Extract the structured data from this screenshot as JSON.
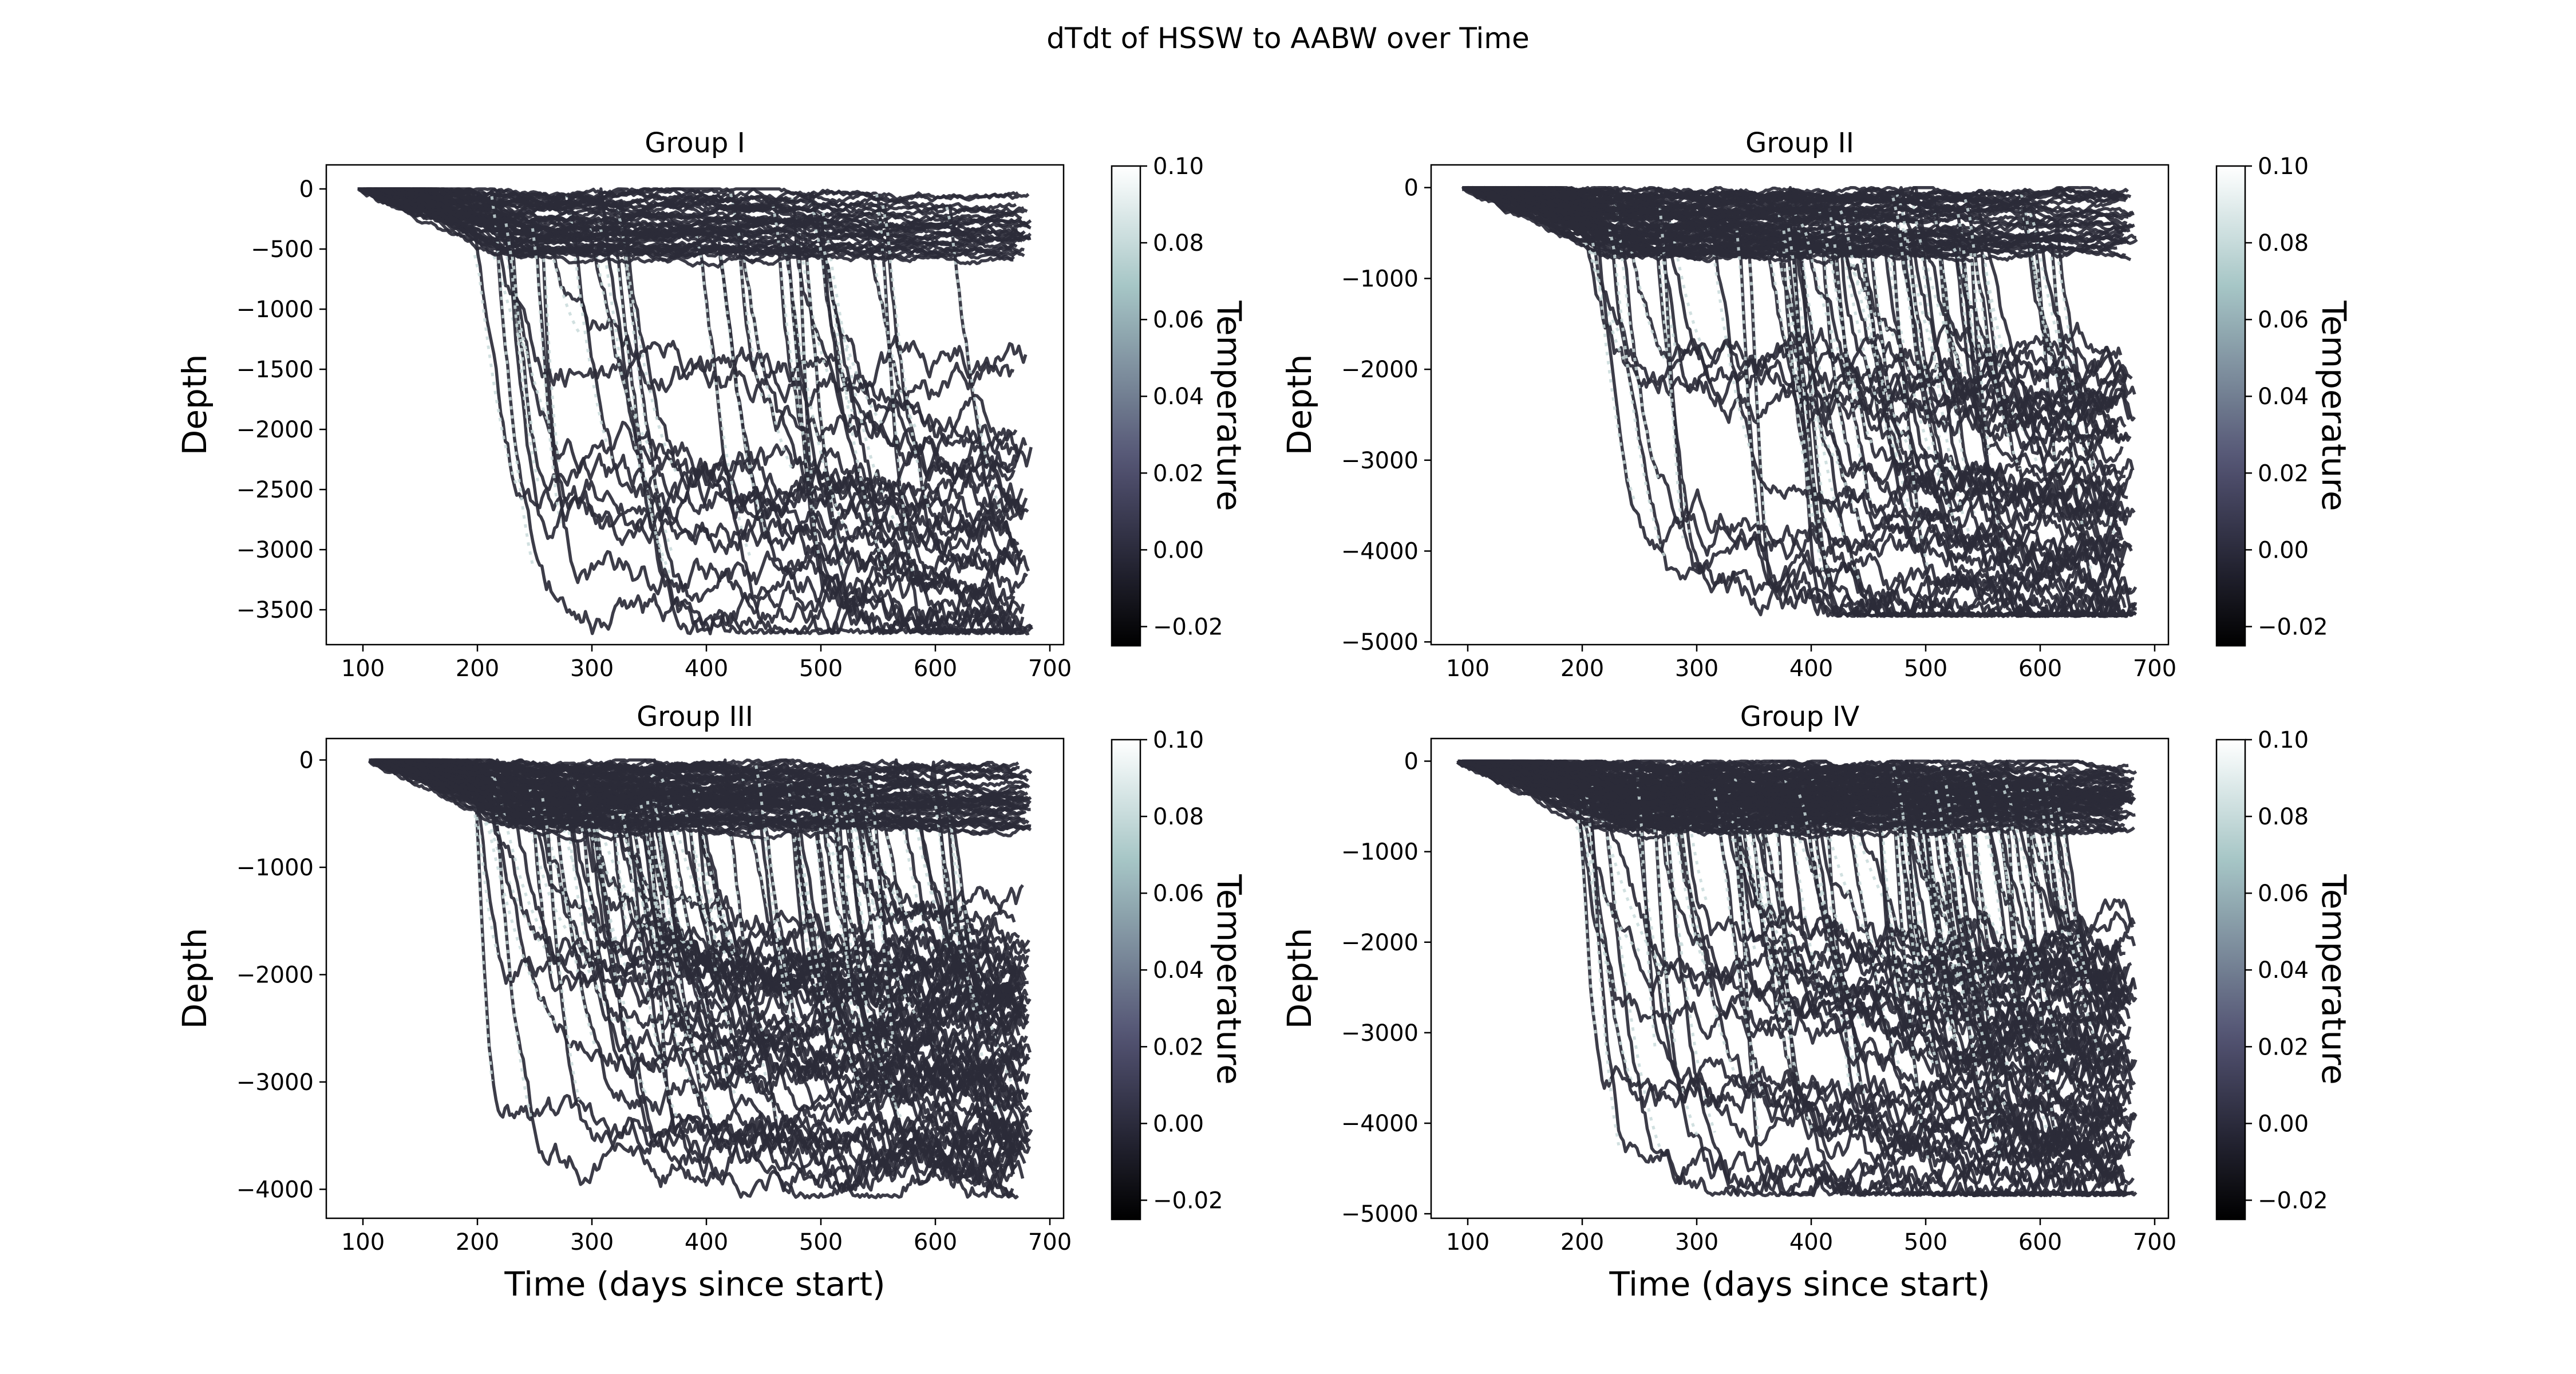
{
  "figure": {
    "title": "dTdt of HSSW to AABW over Time"
  },
  "chart_data": [
    {
      "type": "line",
      "title": "Group I",
      "xlabel": "",
      "ylabel": "Depth",
      "xlim": [
        68,
        712
      ],
      "ylim": [
        -3790,
        200
      ],
      "xticks": [
        100,
        200,
        300,
        400,
        500,
        600,
        700
      ],
      "xtick_labels": [
        "100",
        "200",
        "300",
        "400",
        "500",
        "600",
        "700"
      ],
      "yticks": [
        0,
        -500,
        -1000,
        -1500,
        -2000,
        -2500,
        -3000,
        -3500
      ],
      "ytick_labels": [
        "0",
        "−500",
        "−1000",
        "−1500",
        "−2000",
        "−2500",
        "−3000",
        "−3500"
      ],
      "x_range": [
        95,
        685
      ],
      "trajectory_count": 60,
      "deep_min_depth": -3700,
      "line_color": "#2b2b38",
      "colorbar": {
        "label": "Temperature",
        "range": [
          -0.025,
          0.1
        ],
        "ticks": [
          0.1,
          0.08,
          0.06,
          0.04,
          0.02,
          0.0,
          -0.02
        ],
        "tick_labels": [
          "0.10",
          "0.08",
          "0.06",
          "0.04",
          "0.02",
          "0.00",
          "−0.02"
        ],
        "colormap": "bone"
      }
    },
    {
      "type": "line",
      "title": "Group II",
      "xlabel": "",
      "ylabel": "Depth",
      "xlim": [
        68,
        712
      ],
      "ylim": [
        -5030,
        250
      ],
      "xticks": [
        100,
        200,
        300,
        400,
        500,
        600,
        700
      ],
      "xtick_labels": [
        "100",
        "200",
        "300",
        "400",
        "500",
        "600",
        "700"
      ],
      "yticks": [
        0,
        -1000,
        -2000,
        -3000,
        -4000,
        -5000
      ],
      "ytick_labels": [
        "0",
        "−1000",
        "−2000",
        "−3000",
        "−4000",
        "−5000"
      ],
      "x_range": [
        95,
        685
      ],
      "trajectory_count": 85,
      "deep_min_depth": -4720,
      "line_color": "#2b2b38",
      "colorbar": {
        "label": "Temperature",
        "range": [
          -0.025,
          0.1
        ],
        "ticks": [
          0.1,
          0.08,
          0.06,
          0.04,
          0.02,
          0.0,
          -0.02
        ],
        "tick_labels": [
          "0.10",
          "0.08",
          "0.06",
          "0.04",
          "0.02",
          "0.00",
          "−0.02"
        ],
        "colormap": "bone"
      }
    },
    {
      "type": "line",
      "title": "Group III",
      "xlabel": "Time (days since start)",
      "ylabel": "Depth",
      "xlim": [
        68,
        712
      ],
      "ylim": [
        -4270,
        200
      ],
      "xticks": [
        100,
        200,
        300,
        400,
        500,
        600,
        700
      ],
      "xtick_labels": [
        "100",
        "200",
        "300",
        "400",
        "500",
        "600",
        "700"
      ],
      "yticks": [
        0,
        -1000,
        -2000,
        -3000,
        -4000
      ],
      "ytick_labels": [
        "0",
        "−1000",
        "−2000",
        "−3000",
        "−4000"
      ],
      "x_range": [
        105,
        685
      ],
      "trajectory_count": 110,
      "deep_min_depth": -4080,
      "line_color": "#2b2b38",
      "colorbar": {
        "label": "Temperature",
        "range": [
          -0.025,
          0.1
        ],
        "ticks": [
          0.1,
          0.08,
          0.06,
          0.04,
          0.02,
          0.0,
          -0.02
        ],
        "tick_labels": [
          "0.10",
          "0.08",
          "0.06",
          "0.04",
          "0.02",
          "0.00",
          "−0.02"
        ],
        "colormap": "bone"
      }
    },
    {
      "type": "line",
      "title": "Group IV",
      "xlabel": "Time (days since start)",
      "ylabel": "Depth",
      "xlim": [
        68,
        712
      ],
      "ylim": [
        -5050,
        250
      ],
      "xticks": [
        100,
        200,
        300,
        400,
        500,
        600,
        700
      ],
      "xtick_labels": [
        "100",
        "200",
        "300",
        "400",
        "500",
        "600",
        "700"
      ],
      "yticks": [
        0,
        -1000,
        -2000,
        -3000,
        -4000,
        -5000
      ],
      "ytick_labels": [
        "0",
        "−1000",
        "−2000",
        "−3000",
        "−4000",
        "−5000"
      ],
      "x_range": [
        90,
        685
      ],
      "trajectory_count": 130,
      "deep_min_depth": -4800,
      "line_color": "#2b2b38",
      "colorbar": {
        "label": "Temperature",
        "range": [
          -0.025,
          0.1
        ],
        "ticks": [
          0.1,
          0.08,
          0.06,
          0.04,
          0.02,
          0.0,
          -0.02
        ],
        "tick_labels": [
          "0.10",
          "0.08",
          "0.06",
          "0.04",
          "0.02",
          "0.00",
          "−0.02"
        ],
        "colormap": "bone"
      }
    }
  ]
}
